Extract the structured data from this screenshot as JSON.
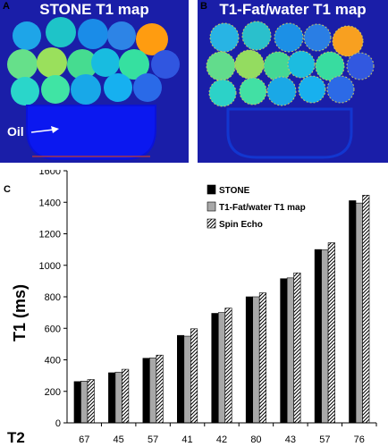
{
  "panels": {
    "a": {
      "letter": "A",
      "title": "STONE T1 map",
      "annotation": "Oil"
    },
    "b": {
      "letter": "B",
      "title": "T1-Fat/water T1 map"
    }
  },
  "chart_data": {
    "letter": "C",
    "type": "bar",
    "ylabel": "T1  (ms)",
    "xlabel_prefix": "T2",
    "categories": [
      "67",
      "45",
      "57",
      "41",
      "42",
      "80",
      "43",
      "57",
      "76"
    ],
    "ylim": [
      0,
      1600
    ],
    "yticks": [
      0,
      200,
      400,
      600,
      800,
      1000,
      1200,
      1400,
      1600
    ],
    "legend_position": "top-right",
    "series": [
      {
        "name": "STONE",
        "values": [
          262,
          318,
          410,
          555,
          695,
          800,
          915,
          1100,
          1410
        ],
        "color": "#000000",
        "pattern": "solid"
      },
      {
        "name": "T1-Fat/water T1 map",
        "values": [
          265,
          322,
          412,
          550,
          700,
          800,
          920,
          1098,
          1395
        ],
        "color": "#a8a8a8",
        "pattern": "gray"
      },
      {
        "name": "Spin Echo",
        "values": [
          275,
          340,
          430,
          597,
          728,
          825,
          952,
          1143,
          1445
        ],
        "color": "#ffffff",
        "pattern": "hatch"
      }
    ]
  }
}
